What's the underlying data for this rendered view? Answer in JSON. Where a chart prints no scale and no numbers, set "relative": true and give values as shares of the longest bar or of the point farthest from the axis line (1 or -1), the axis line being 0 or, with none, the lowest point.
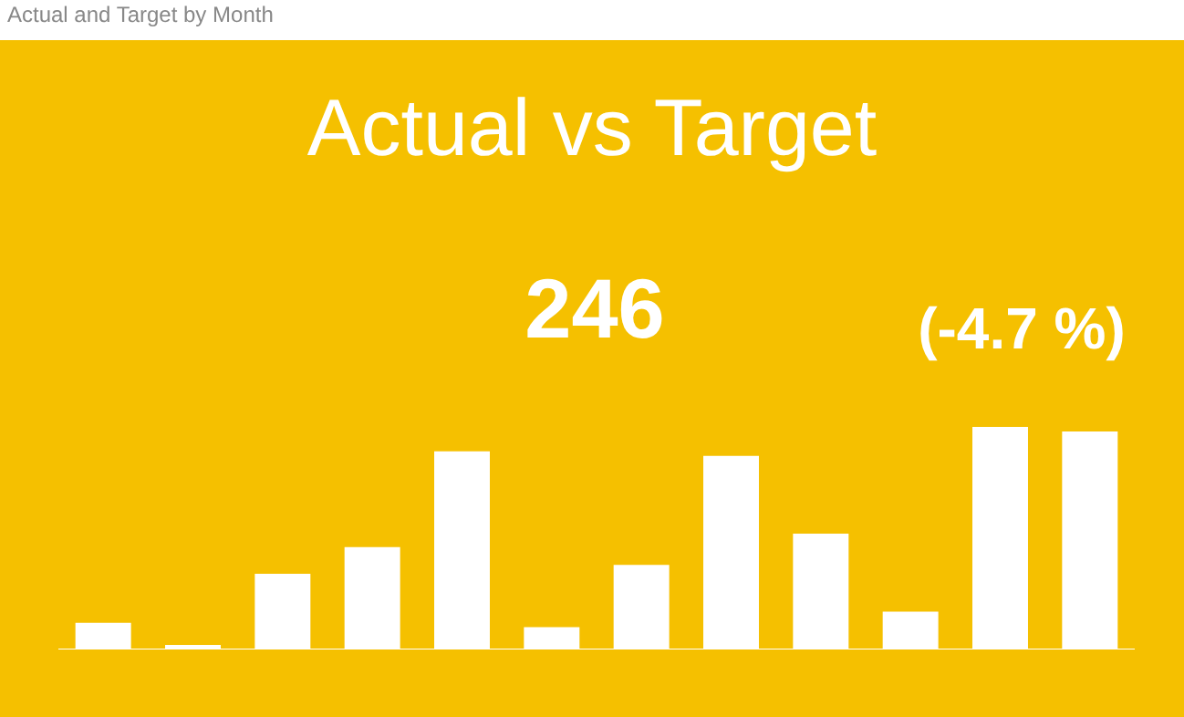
{
  "chart_data": {
    "type": "bar",
    "title": "Actual vs Target",
    "relative": true,
    "legend": false,
    "categories": [
      null,
      null,
      null,
      null,
      null,
      null,
      null,
      null,
      null,
      null,
      null,
      null
    ],
    "values": [
      0.12,
      0.02,
      0.34,
      0.46,
      0.89,
      0.1,
      0.38,
      0.87,
      0.52,
      0.17,
      1,
      0.98
    ],
    "color": "#ffffff",
    "annotations": [
      "Actual and Target by Month",
      "246",
      "(-4.7 %)"
    ]
  }
}
